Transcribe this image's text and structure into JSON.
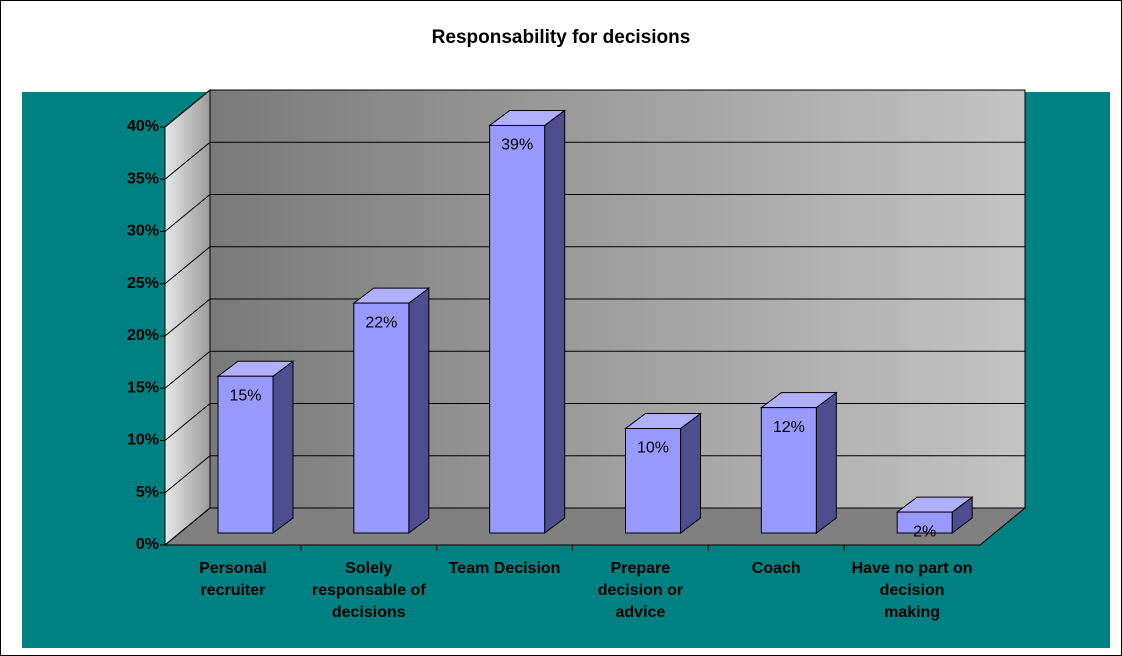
{
  "chart_data": {
    "type": "bar3d",
    "title": "Responsability for decisions",
    "categories": [
      "Personal recruiter",
      "Solely responsable of decisions",
      "Team Decision",
      "Prepare decision or advice",
      "Coach",
      "Have no part on decision making"
    ],
    "values": [
      15,
      22,
      39,
      10,
      12,
      2
    ],
    "value_labels": [
      "15%",
      "22%",
      "39%",
      "10%",
      "12%",
      "2%"
    ],
    "color": "#9999ff",
    "ylim": [
      0,
      40
    ],
    "yticks": [
      {
        "value": 0,
        "label": "0%"
      },
      {
        "value": 5,
        "label": "5%"
      },
      {
        "value": 10,
        "label": "10%"
      },
      {
        "value": 15,
        "label": "15%"
      },
      {
        "value": 20,
        "label": "20%"
      },
      {
        "value": 25,
        "label": "25%"
      },
      {
        "value": 30,
        "label": "30%"
      },
      {
        "value": 35,
        "label": "35%"
      },
      {
        "value": 40,
        "label": "40%"
      }
    ],
    "grid": true
  }
}
